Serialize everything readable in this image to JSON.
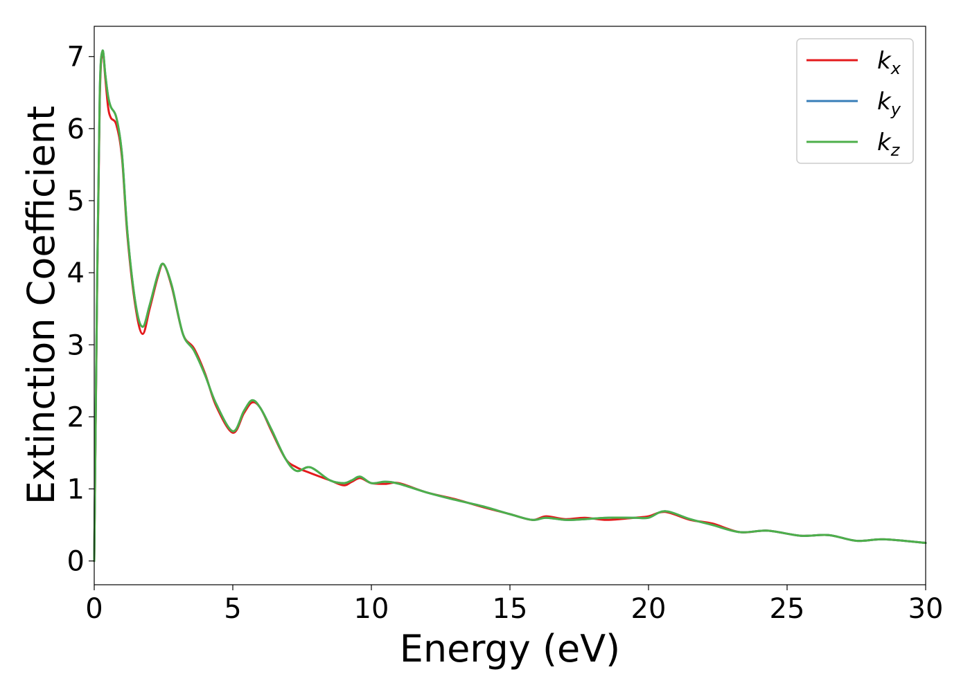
{
  "chart_data": {
    "type": "line",
    "xlabel": "Energy (eV)",
    "ylabel": "Extinction Coefficient",
    "xlim": [
      0,
      30
    ],
    "ylim": [
      -0.33,
      7.42
    ],
    "xticks": [
      0,
      5,
      10,
      15,
      20,
      25,
      30
    ],
    "yticks": [
      0,
      1,
      2,
      3,
      4,
      5,
      6,
      7
    ],
    "grid": false,
    "legend_position": "top-right",
    "series": [
      {
        "name": "k",
        "subscript": "x",
        "color": "#e41a1c",
        "x": [
          0,
          0.1,
          0.2,
          0.3,
          0.4,
          0.5,
          0.6,
          0.8,
          1.0,
          1.2,
          1.5,
          1.75,
          2.0,
          2.3,
          2.5,
          2.8,
          3.2,
          3.6,
          4.0,
          4.4,
          5.0,
          5.4,
          5.7,
          6.0,
          6.4,
          6.9,
          7.3,
          7.8,
          8.5,
          9.0,
          9.3,
          9.6,
          10.0,
          10.5,
          11.0,
          12.0,
          13.0,
          14.0,
          15.0,
          15.8,
          16.3,
          17.0,
          17.7,
          18.5,
          19.5,
          20.0,
          20.6,
          21.5,
          22.3,
          23.3,
          24.3,
          25.5,
          26.5,
          27.5,
          28.5,
          30.0
        ],
        "values": [
          0,
          3.6,
          6.4,
          7.07,
          6.7,
          6.3,
          6.15,
          6.05,
          5.6,
          4.5,
          3.5,
          3.15,
          3.5,
          3.95,
          4.12,
          3.8,
          3.15,
          2.95,
          2.6,
          2.15,
          1.78,
          2.05,
          2.2,
          2.12,
          1.8,
          1.42,
          1.3,
          1.22,
          1.12,
          1.05,
          1.1,
          1.15,
          1.08,
          1.07,
          1.08,
          0.95,
          0.86,
          0.75,
          0.65,
          0.57,
          0.62,
          0.58,
          0.6,
          0.57,
          0.6,
          0.62,
          0.68,
          0.57,
          0.52,
          0.4,
          0.42,
          0.35,
          0.36,
          0.28,
          0.3,
          0.25
        ]
      },
      {
        "name": "k",
        "subscript": "y",
        "color": "#377eb8",
        "x": [
          0,
          0.1,
          0.2,
          0.3,
          0.4,
          0.5,
          0.6,
          0.8,
          1.0,
          1.2,
          1.5,
          1.75,
          2.0,
          2.3,
          2.5,
          2.8,
          3.2,
          3.6,
          4.0,
          4.4,
          5.0,
          5.4,
          5.7,
          6.0,
          6.4,
          6.9,
          7.3,
          7.8,
          8.5,
          9.0,
          9.3,
          9.6,
          10.0,
          10.5,
          11.0,
          12.0,
          13.0,
          14.0,
          15.0,
          15.8,
          16.3,
          17.0,
          17.7,
          18.5,
          19.5,
          20.0,
          20.6,
          21.5,
          22.3,
          23.3,
          24.3,
          25.5,
          26.5,
          27.5,
          28.5,
          30.0
        ],
        "values": [
          0,
          3.7,
          6.5,
          7.08,
          6.75,
          6.45,
          6.3,
          6.15,
          5.65,
          4.55,
          3.55,
          3.25,
          3.55,
          3.98,
          4.12,
          3.82,
          3.15,
          2.92,
          2.58,
          2.18,
          1.8,
          2.08,
          2.23,
          2.12,
          1.82,
          1.42,
          1.25,
          1.3,
          1.12,
          1.08,
          1.12,
          1.17,
          1.08,
          1.1,
          1.07,
          0.95,
          0.85,
          0.76,
          0.65,
          0.57,
          0.6,
          0.57,
          0.58,
          0.6,
          0.6,
          0.6,
          0.69,
          0.58,
          0.5,
          0.4,
          0.42,
          0.35,
          0.36,
          0.28,
          0.3,
          0.25
        ]
      },
      {
        "name": "k",
        "subscript": "z",
        "color": "#4daf4a",
        "x": [
          0,
          0.1,
          0.2,
          0.3,
          0.4,
          0.5,
          0.6,
          0.8,
          1.0,
          1.2,
          1.5,
          1.75,
          2.0,
          2.3,
          2.5,
          2.8,
          3.2,
          3.6,
          4.0,
          4.4,
          5.0,
          5.4,
          5.7,
          6.0,
          6.4,
          6.9,
          7.3,
          7.8,
          8.5,
          9.0,
          9.3,
          9.6,
          10.0,
          10.5,
          11.0,
          12.0,
          13.0,
          14.0,
          15.0,
          15.8,
          16.3,
          17.0,
          17.7,
          18.5,
          19.5,
          20.0,
          20.6,
          21.5,
          22.3,
          23.3,
          24.3,
          25.5,
          26.5,
          27.5,
          28.5,
          30.0
        ],
        "values": [
          0,
          3.7,
          6.5,
          7.08,
          6.75,
          6.45,
          6.3,
          6.15,
          5.65,
          4.55,
          3.55,
          3.25,
          3.55,
          3.98,
          4.12,
          3.82,
          3.15,
          2.92,
          2.58,
          2.18,
          1.8,
          2.08,
          2.23,
          2.12,
          1.82,
          1.42,
          1.25,
          1.3,
          1.12,
          1.08,
          1.12,
          1.17,
          1.08,
          1.1,
          1.07,
          0.95,
          0.85,
          0.76,
          0.65,
          0.57,
          0.6,
          0.57,
          0.58,
          0.6,
          0.6,
          0.6,
          0.69,
          0.58,
          0.5,
          0.4,
          0.42,
          0.35,
          0.36,
          0.28,
          0.3,
          0.25
        ]
      }
    ]
  }
}
